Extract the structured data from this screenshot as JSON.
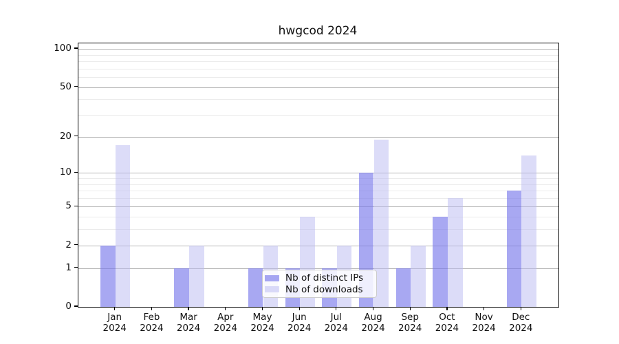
{
  "chart_data": {
    "type": "bar",
    "title": "hwgcod 2024",
    "categories": [
      "Jan",
      "Feb",
      "Mar",
      "Apr",
      "May",
      "Jun",
      "Jul",
      "Aug",
      "Sep",
      "Oct",
      "Nov",
      "Dec"
    ],
    "category_year": "2024",
    "series": [
      {
        "name": "Nb of distinct IPs",
        "values": [
          2,
          0,
          1,
          0,
          1,
          1,
          1,
          10,
          1,
          4,
          0,
          7
        ]
      },
      {
        "name": "Nb of downloads",
        "values": [
          17,
          0,
          2,
          0,
          2,
          4,
          2,
          19,
          2,
          6,
          0,
          14
        ]
      }
    ],
    "y_scale": "log(1+v)",
    "y_ticks": [
      0,
      1,
      2,
      5,
      10,
      20,
      50,
      100
    ],
    "y_tick_labels": [
      "0",
      "1",
      "2",
      "5",
      "10",
      "20",
      "50",
      "100"
    ],
    "y_minor_gridlines": [
      3,
      4,
      6,
      7,
      8,
      9,
      30,
      40,
      60,
      70,
      80,
      90
    ],
    "ylim": [
      0,
      110
    ],
    "grid": true,
    "legend_position": "lower center"
  },
  "colors": {
    "bar_ips": "rgba(121,121,235,0.65)",
    "bar_downloads": "rgba(185,185,241,0.5)",
    "grid_major": "#b5b5b5",
    "grid_minor": "#ebebeb",
    "axis": "#000000",
    "legend_border": "#cccccc"
  }
}
